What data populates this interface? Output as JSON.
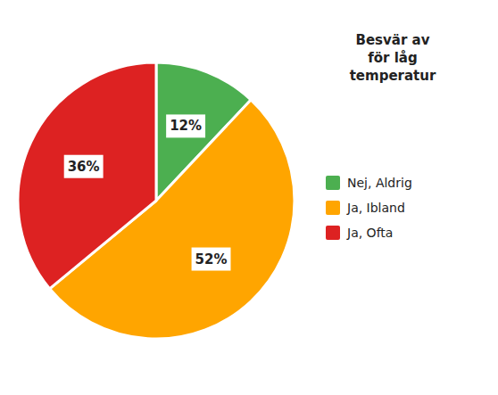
{
  "chart_data": {
    "type": "pie",
    "title": "Besvär av\nför låg\ntemperatur",
    "categories": [
      "Nej, Aldrig",
      "Ja, Ibland",
      "Ja, Ofta"
    ],
    "values": [
      12,
      52,
      36
    ],
    "value_labels": [
      "12%",
      "52%",
      "36%"
    ],
    "colors": [
      "#4CAF50",
      "#FFA500",
      "#DD2222"
    ],
    "data_labels": true,
    "legend": "right"
  }
}
